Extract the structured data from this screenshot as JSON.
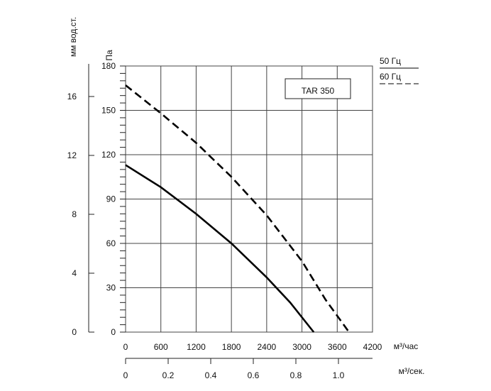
{
  "chart_data": {
    "type": "line",
    "title": "TAR 350",
    "xlabel": "м³/час",
    "xlabel2": "м³/сек.",
    "ylabel": "Па",
    "ylabel2": "мм вод.ст.",
    "xlim": [
      0,
      4200
    ],
    "ylim": [
      0,
      180
    ],
    "x_ticks": [
      0,
      600,
      1200,
      1800,
      2400,
      3000,
      3600,
      4200
    ],
    "y_ticks": [
      0,
      30,
      60,
      90,
      120,
      150,
      180
    ],
    "x2_ticks": [
      "0",
      "0.2",
      "0.4",
      "0.6",
      "0.8",
      "1.0"
    ],
    "y2_ticks": [
      "0",
      "4",
      "8",
      "12",
      "16"
    ],
    "legend": [
      "50 Гц",
      "60 Гц"
    ],
    "series": [
      {
        "name": "50 Гц",
        "style": "solid",
        "x": [
          0,
          600,
          1200,
          1800,
          2400,
          2800,
          3200
        ],
        "y": [
          113,
          98,
          80,
          60,
          37,
          20,
          0
        ]
      },
      {
        "name": "60 Гц",
        "style": "dashed",
        "x": [
          0,
          600,
          1200,
          1800,
          2400,
          3000,
          3400,
          3800
        ],
        "y": [
          167,
          148,
          128,
          105,
          79,
          48,
          22,
          0
        ]
      }
    ]
  }
}
